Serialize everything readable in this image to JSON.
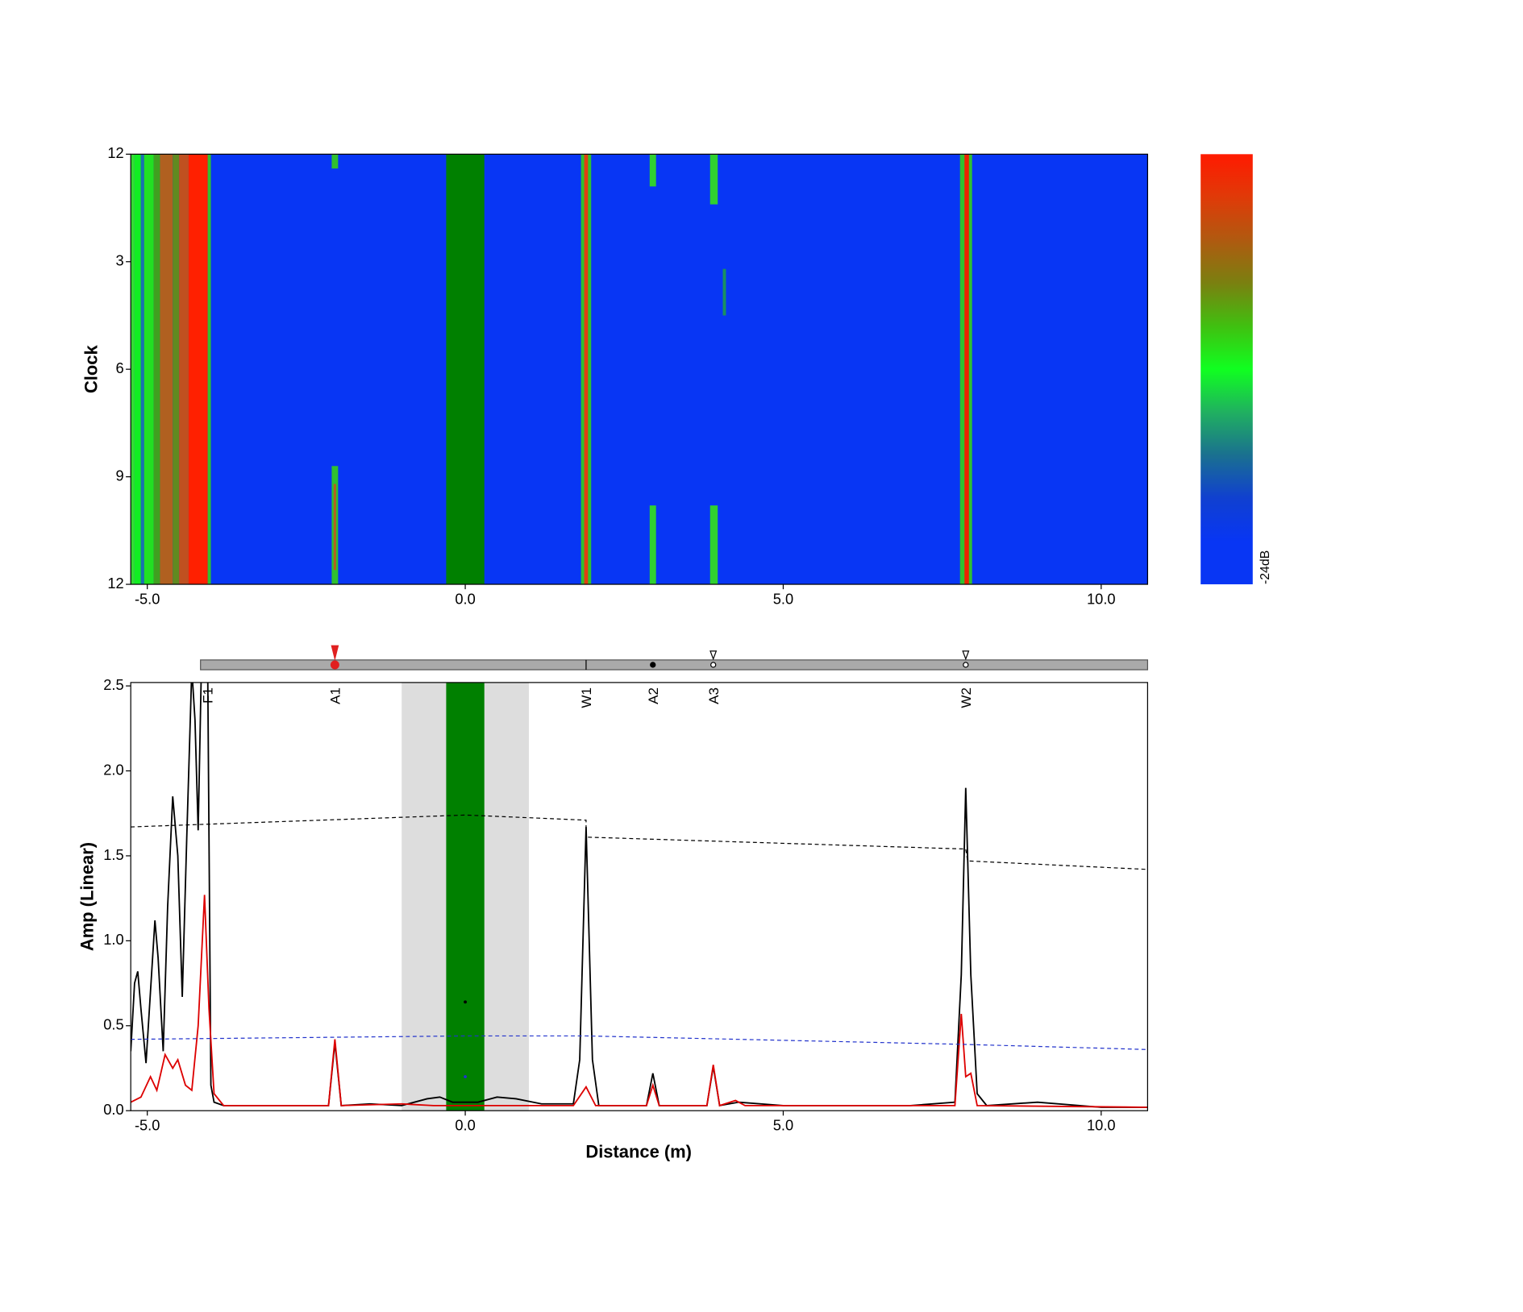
{
  "chart_data": [
    {
      "type": "heatmap",
      "y_label": "Clock",
      "xlim": [
        -5.26,
        10.73
      ],
      "xticks": [
        {
          "value": -5,
          "label": "-5.0"
        },
        {
          "value": 0,
          "label": "0.0"
        },
        {
          "value": 5,
          "label": "5.0"
        },
        {
          "value": 10,
          "label": "10.0"
        }
      ],
      "ylim": [
        0,
        12
      ],
      "yticks": [
        {
          "value": 0,
          "label": "12"
        },
        3,
        6,
        9,
        {
          "value": 12,
          "label": "12"
        }
      ],
      "background": "#0836f4",
      "regions": [
        {
          "x0": -5.26,
          "x1": -5.2,
          "y0": 0,
          "y1": 12,
          "color": "#33dd33"
        },
        {
          "x0": -5.2,
          "x1": -5.1,
          "y0": 0,
          "y1": 12,
          "color": "#11ee22"
        },
        {
          "x0": -5.1,
          "x1": -5.05,
          "y0": 0,
          "y1": 12,
          "color": "#1a70b0"
        },
        {
          "x0": -5.05,
          "x1": -4.9,
          "y0": 0,
          "y1": 12,
          "color": "#22e022"
        },
        {
          "x0": -4.9,
          "x1": -4.8,
          "y0": 0,
          "y1": 12,
          "color": "#40a020"
        },
        {
          "x0": -4.8,
          "x1": -4.6,
          "y0": 0,
          "y1": 12,
          "color": "#b06020"
        },
        {
          "x0": -4.6,
          "x1": -4.5,
          "y0": 0,
          "y1": 12,
          "color": "#608a20"
        },
        {
          "x0": -4.5,
          "x1": -4.35,
          "y0": 0,
          "y1": 12,
          "color": "#c05020"
        },
        {
          "x0": -4.35,
          "x1": -4.05,
          "y0": 0,
          "y1": 12,
          "color": "#ff2000"
        },
        {
          "x0": -4.05,
          "x1": -4.0,
          "y0": 0,
          "y1": 12,
          "color": "#30c030"
        },
        {
          "x0": -2.1,
          "x1": -2.0,
          "y0": 0,
          "y1": 0.4,
          "color": "#30c030"
        },
        {
          "x0": -2.1,
          "x1": -2.0,
          "y0": 8.7,
          "y1": 12,
          "color": "#30c030"
        },
        {
          "x0": -2.07,
          "x1": -2.03,
          "y0": 9.2,
          "y1": 11.6,
          "color": "#b06020"
        },
        {
          "x0": -0.3,
          "x1": 0.3,
          "y0": 0,
          "y1": 12,
          "color": "#008000"
        },
        {
          "x0": 1.82,
          "x1": 1.98,
          "y0": 0,
          "y1": 12,
          "color": "#30c030"
        },
        {
          "x0": 1.87,
          "x1": 1.93,
          "y0": 0,
          "y1": 12,
          "color": "#e04010"
        },
        {
          "x0": 2.9,
          "x1": 3.0,
          "y0": 0,
          "y1": 0.9,
          "color": "#30d030"
        },
        {
          "x0": 2.9,
          "x1": 3.0,
          "y0": 9.8,
          "y1": 12,
          "color": "#30d030"
        },
        {
          "x0": 3.85,
          "x1": 3.97,
          "y0": 0,
          "y1": 1.4,
          "color": "#30d030"
        },
        {
          "x0": 3.85,
          "x1": 3.97,
          "y0": 9.8,
          "y1": 12,
          "color": "#30d030"
        },
        {
          "x0": 4.05,
          "x1": 4.1,
          "y0": 3.2,
          "y1": 4.5,
          "color": "#1a9060"
        },
        {
          "x0": 7.78,
          "x1": 7.97,
          "y0": 0,
          "y1": 12,
          "color": "#30c030"
        },
        {
          "x0": 7.85,
          "x1": 7.92,
          "y0": 0,
          "y1": 12,
          "color": "#ee2200"
        }
      ],
      "colorbar": {
        "label": "-24dB",
        "stops": [
          "#ff1a00",
          "#e03a08",
          "#b05a10",
          "#7a8010",
          "#40c010",
          "#10ff20",
          "#20b060",
          "#1a7090",
          "#1040d0",
          "#0836f4",
          "#0836f4"
        ]
      }
    },
    {
      "type": "line",
      "y_label": "Amp (Linear)",
      "x_label": "Distance (m)",
      "xlim": [
        -5.26,
        10.73
      ],
      "xticks": [
        {
          "value": -5,
          "label": "-5.0"
        },
        {
          "value": 0,
          "label": "0.0"
        },
        {
          "value": 5,
          "label": "5.0"
        },
        {
          "value": 10,
          "label": "10.0"
        }
      ],
      "ylim": [
        0,
        2.52
      ],
      "yticks": [
        {
          "value": 0,
          "label": "0.0"
        },
        0.5,
        {
          "value": 1,
          "label": "1.0"
        },
        1.5,
        {
          "value": 2,
          "label": "2.0"
        },
        2.5
      ],
      "shaded_regions": [
        {
          "x0": -1,
          "x1": 1,
          "color": "#dddddd"
        },
        {
          "x0": -0.3,
          "x1": 0.3,
          "color": "#008000"
        }
      ],
      "series": [
        {
          "color": "#000000",
          "dash": false,
          "x": [
            -5.26,
            -5.2,
            -5.15,
            -5.1,
            -5.02,
            -4.95,
            -4.88,
            -4.83,
            -4.75,
            -4.68,
            -4.6,
            -4.52,
            -4.45,
            -4.38,
            -4.3,
            -4.25,
            -4.2,
            -4.15,
            -4.05,
            -4.0,
            -3.95,
            -3.8,
            -3.0,
            -2.15,
            -2.05,
            -1.95,
            -1.5,
            -1.0,
            -0.6,
            -0.4,
            -0.2,
            0.2,
            0.5,
            0.8,
            1.2,
            1.7,
            1.8,
            1.9,
            2.0,
            2.1,
            2.85,
            2.95,
            3.05,
            3.8,
            3.9,
            4.0,
            4.3,
            5.0,
            7.0,
            7.7,
            7.8,
            7.87,
            7.95,
            8.05,
            8.2,
            9.0,
            10.0,
            10.73
          ],
          "values": [
            0.35,
            0.75,
            0.82,
            0.6,
            0.28,
            0.7,
            1.12,
            0.9,
            0.35,
            1.2,
            1.85,
            1.5,
            0.67,
            1.6,
            2.6,
            2.3,
            1.65,
            2.6,
            2.6,
            0.15,
            0.05,
            0.03,
            0.03,
            0.03,
            0.4,
            0.03,
            0.04,
            0.03,
            0.07,
            0.08,
            0.05,
            0.05,
            0.08,
            0.07,
            0.04,
            0.04,
            0.3,
            1.67,
            0.3,
            0.03,
            0.03,
            0.22,
            0.03,
            0.03,
            0.26,
            0.03,
            0.05,
            0.03,
            0.03,
            0.05,
            0.8,
            1.9,
            0.8,
            0.1,
            0.03,
            0.05,
            0.02,
            0.02
          ]
        },
        {
          "color": "#dd0000",
          "dash": false,
          "x": [
            -5.26,
            -5.1,
            -4.95,
            -4.85,
            -4.72,
            -4.6,
            -4.52,
            -4.4,
            -4.3,
            -4.2,
            -4.1,
            -4.03,
            -3.95,
            -3.8,
            -2.15,
            -2.05,
            -1.95,
            -1.0,
            -0.5,
            0.5,
            1.7,
            1.9,
            2.05,
            2.85,
            2.95,
            3.05,
            3.8,
            3.9,
            4.0,
            4.25,
            4.4,
            7.7,
            7.8,
            7.87,
            7.95,
            8.05,
            10.73
          ],
          "values": [
            0.05,
            0.08,
            0.2,
            0.12,
            0.33,
            0.25,
            0.3,
            0.15,
            0.12,
            0.5,
            1.27,
            0.6,
            0.1,
            0.03,
            0.03,
            0.42,
            0.03,
            0.04,
            0.03,
            0.03,
            0.03,
            0.14,
            0.03,
            0.03,
            0.15,
            0.03,
            0.03,
            0.27,
            0.03,
            0.06,
            0.03,
            0.03,
            0.57,
            0.2,
            0.22,
            0.03,
            0.02
          ]
        },
        {
          "color": "#000000",
          "dash": true,
          "x": [
            -5.26,
            0,
            1.9,
            1.9,
            7.87,
            7.9,
            10.73
          ],
          "values": [
            1.67,
            1.74,
            1.71,
            1.61,
            1.54,
            1.47,
            1.42
          ]
        },
        {
          "color": "#2233cc",
          "dash": true,
          "x": [
            -5.26,
            0,
            1.9,
            7.87,
            10.73
          ],
          "values": [
            0.42,
            0.44,
            0.44,
            0.39,
            0.36
          ]
        }
      ],
      "points": [
        {
          "x": 0,
          "value": 0.64,
          "color": "#000000"
        },
        {
          "x": 0,
          "value": 0.2,
          "color": "#2233cc"
        }
      ],
      "features": [
        {
          "label": "F1",
          "x": -4.05,
          "symbol": "none"
        },
        {
          "label": "A1",
          "x": -2.05,
          "symbol": "red-pin"
        },
        {
          "label": "W1",
          "x": 1.9,
          "symbol": "tick"
        },
        {
          "label": "A2",
          "x": 2.95,
          "symbol": "dot"
        },
        {
          "label": "A3",
          "x": 3.9,
          "symbol": "pin"
        },
        {
          "label": "W2",
          "x": 7.87,
          "symbol": "pin"
        }
      ]
    }
  ]
}
